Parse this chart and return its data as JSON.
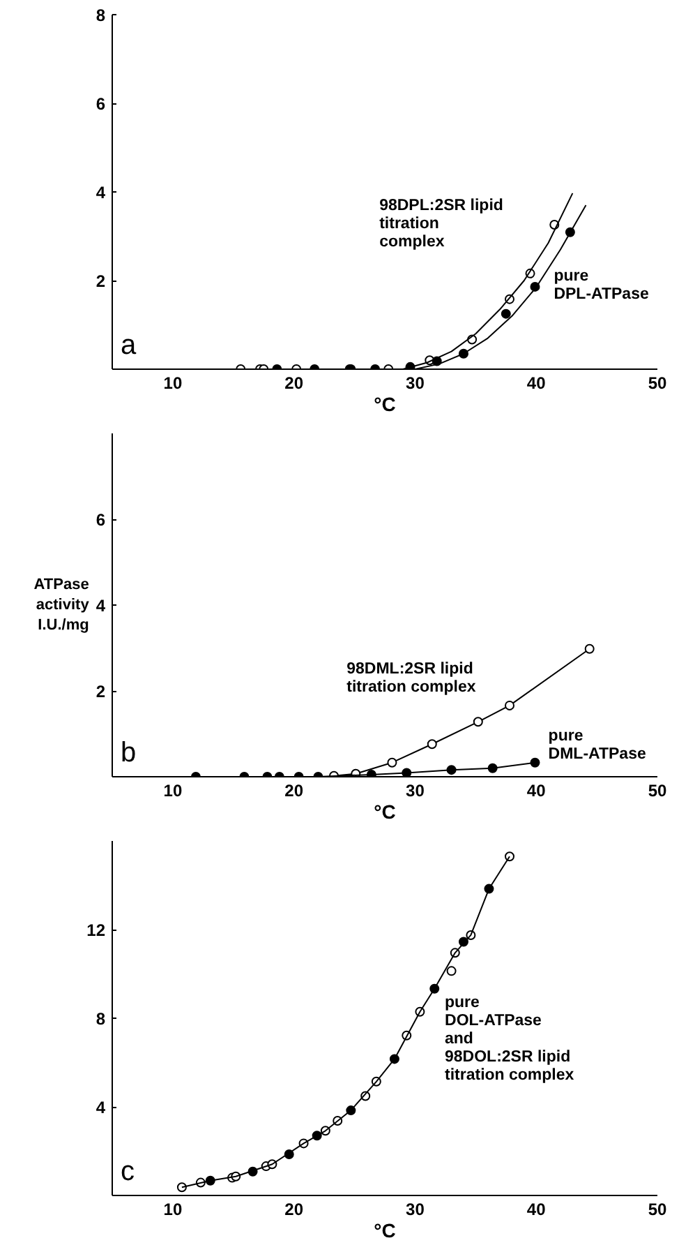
{
  "chart_data": [
    {
      "type": "scatter",
      "xlabel": "°C",
      "xlim": [
        5,
        50
      ],
      "xticks": [
        10,
        20,
        30,
        40,
        50
      ],
      "ylim": [
        0,
        8
      ],
      "yticks": [
        2,
        4,
        6,
        8
      ],
      "grid": false,
      "series": [
        {
          "marker": "circle_open",
          "color": "#000000",
          "x": [
            15.6,
            17.2,
            17.5,
            20.2,
            24.7,
            27.8,
            31.2,
            34.7,
            37.8,
            39.5,
            41.5
          ],
          "values": [
            0,
            0,
            0,
            0,
            0,
            0,
            0.2,
            0.67,
            1.58,
            2.16,
            3.26
          ]
        },
        {
          "marker": "circle",
          "color": "#000000",
          "x": [
            18.6,
            21.7,
            24.6,
            26.7,
            29.6,
            31.8,
            34.0,
            37.5,
            39.9,
            42.8
          ],
          "values": [
            0,
            0,
            0,
            0,
            0.05,
            0.18,
            0.35,
            1.25,
            1.86,
            3.09
          ]
        },
        {
          "type": "line",
          "marker": "none",
          "color": "#000000",
          "x": [
            29,
            31,
            33,
            35,
            37,
            39,
            41,
            43
          ],
          "values": [
            0,
            0.15,
            0.4,
            0.8,
            1.35,
            2.0,
            2.85,
            3.97
          ]
        },
        {
          "type": "line",
          "marker": "none",
          "color": "#000000",
          "x": [
            30,
            32,
            34,
            36,
            38,
            40,
            42,
            44.1
          ],
          "values": [
            0,
            0.12,
            0.35,
            0.7,
            1.2,
            1.85,
            2.7,
            3.7
          ]
        }
      ],
      "annotations": [
        "a",
        "98DPL:2SR lipid\ntitration\ncomplex",
        "pure\nDPL-ATPase"
      ]
    },
    {
      "type": "line",
      "xlabel": "°C",
      "ylabel": "ATPase\nactivity\nI.U./mg",
      "xlim": [
        5,
        50
      ],
      "xticks": [
        10,
        20,
        30,
        40,
        50
      ],
      "ylim": [
        0,
        8
      ],
      "yticks": [
        2,
        4,
        6
      ],
      "grid": false,
      "series": [
        {
          "marker": "circle_open",
          "color": "#000000",
          "x": [
            23.3,
            25.1,
            28.1,
            31.4,
            35.2,
            37.8,
            44.4
          ],
          "values": [
            0.02,
            0.07,
            0.33,
            0.76,
            1.28,
            1.66,
            2.98
          ]
        },
        {
          "marker": "circle",
          "color": "#000000",
          "x": [
            11.9,
            15.9,
            17.8,
            18.8,
            20.4,
            22.0,
            26.4,
            29.3,
            33.0,
            36.4,
            39.9
          ],
          "values": [
            0,
            0,
            0,
            0,
            0,
            0,
            0.05,
            0.09,
            0.16,
            0.2,
            0.33
          ]
        }
      ],
      "annotations": [
        "b",
        "98DML:2SR lipid\ntitration complex",
        "pure\nDML-ATPase"
      ]
    },
    {
      "type": "scatter",
      "xlabel": "°C",
      "xlim": [
        5,
        50
      ],
      "xticks": [
        10,
        20,
        30,
        40,
        50
      ],
      "ylim": [
        0,
        16
      ],
      "yticks": [
        4,
        8,
        12
      ],
      "grid": false,
      "series": [
        {
          "marker": "circle_open",
          "color": "#000000",
          "x": [
            10.75,
            12.3,
            14.9,
            15.2,
            17.7,
            18.2,
            20.8,
            22.6,
            23.6,
            25.9,
            26.8,
            29.3,
            30.4,
            33.0,
            33.3,
            34.6,
            37.8
          ],
          "values": [
            0.37,
            0.58,
            0.8,
            0.86,
            1.32,
            1.41,
            2.35,
            2.92,
            3.37,
            4.49,
            5.14,
            7.22,
            8.29,
            10.13,
            10.95,
            11.75,
            15.3
          ]
        },
        {
          "marker": "circle",
          "color": "#000000",
          "x": [
            13.1,
            16.6,
            19.6,
            21.9,
            24.7,
            28.3,
            31.6,
            34.0,
            36.1
          ],
          "values": [
            0.67,
            1.08,
            1.86,
            2.7,
            3.84,
            6.16,
            9.33,
            11.45,
            13.84
          ]
        },
        {
          "type": "line",
          "marker": "none",
          "color": "#000000",
          "x": [
            10.75,
            13.1,
            15.2,
            18.2,
            20.8,
            22.6,
            24.7,
            26.8,
            28.3,
            30.4,
            31.6,
            33.3,
            34.6,
            36.1,
            37.8
          ],
          "values": [
            0.37,
            0.67,
            0.86,
            1.41,
            2.35,
            2.92,
            3.84,
            5.14,
            6.16,
            8.29,
            9.33,
            10.95,
            11.75,
            13.84,
            15.3
          ]
        }
      ],
      "annotations": [
        "c",
        "pure\nDOL-ATPase\nand\n98DOL:2SR lipid\ntitration complex"
      ]
    }
  ]
}
